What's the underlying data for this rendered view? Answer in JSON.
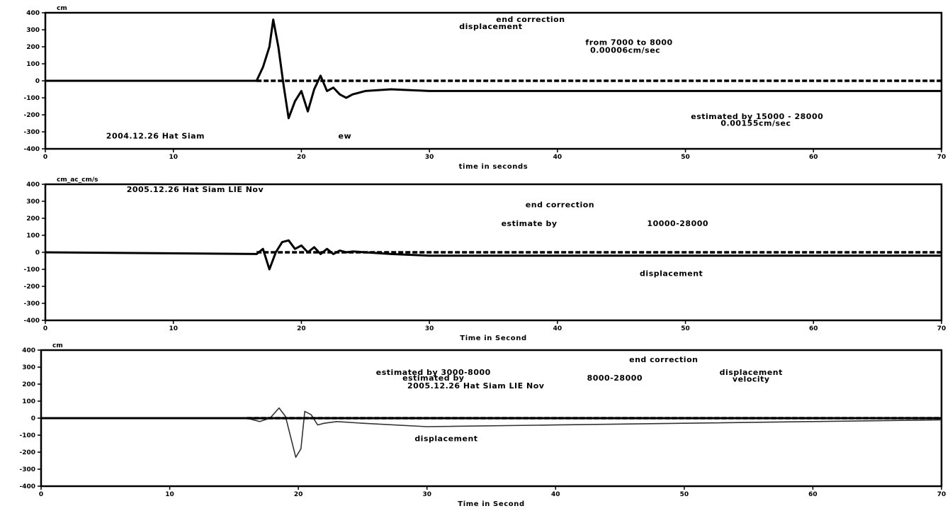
{
  "chart_data": [
    {
      "type": "line",
      "unit": "cm",
      "xlabel": "time in seconds",
      "xlim": [
        0,
        70
      ],
      "ylim": [
        -400,
        400
      ],
      "xticks": [
        0,
        10,
        20,
        30,
        40,
        50,
        60,
        70
      ],
      "yticks": [
        -400,
        -300,
        -200,
        -100,
        0,
        100,
        200,
        300,
        400
      ],
      "annotations": [
        {
          "text": "end correction",
          "x": 37.9,
          "y": 345
        },
        {
          "text": "displacement",
          "x": 34.8,
          "y": 305
        },
        {
          "text": "from 7000 to 8000",
          "x": 45.6,
          "y": 210
        },
        {
          "text": "0.00006cm/sec",
          "x": 45.3,
          "y": 165
        },
        {
          "text": "estimated by 15000 - 28000",
          "x": 55.6,
          "y": -225
        },
        {
          "text": "0.00155cm/sec",
          "x": 55.5,
          "y": -265
        },
        {
          "text": "2004.12.26 Hat Siam",
          "x": 8.6,
          "y": -340
        },
        {
          "text": "ew",
          "x": 23.4,
          "y": -340
        }
      ],
      "series": [
        {
          "style": "bold",
          "x": [
            0,
            16.5,
            17,
            17.5,
            17.8,
            18.2,
            18.6,
            19.0,
            19.5,
            20.0,
            20.5,
            21.0,
            21.5,
            22.0,
            22.5,
            23.0,
            23.5,
            24.0,
            24.5,
            25.0,
            27,
            30,
            35,
            70
          ],
          "y": [
            0,
            0,
            80,
            200,
            360,
            200,
            -20,
            -220,
            -120,
            -60,
            -180,
            -50,
            30,
            -60,
            -40,
            -80,
            -100,
            -80,
            -70,
            -60,
            -50,
            -60,
            -60,
            -60
          ]
        },
        {
          "style": "dotted",
          "x": [
            16.5,
            70
          ],
          "y": [
            0,
            0
          ]
        }
      ]
    },
    {
      "type": "line",
      "unit": "cm_ac_cm/s",
      "xlabel": "Time in Second",
      "xlim": [
        0,
        70
      ],
      "ylim": [
        -400,
        400
      ],
      "xticks": [
        0,
        10,
        20,
        30,
        40,
        50,
        60,
        70
      ],
      "yticks": [
        -400,
        -300,
        -200,
        -100,
        0,
        100,
        200,
        300,
        400
      ],
      "annotations": [
        {
          "text": "2005.12.26 Hat Siam LIE Nov",
          "x": 11.7,
          "y": 355
        },
        {
          "text": "end correction",
          "x": 40.2,
          "y": 265
        },
        {
          "text": "estimate by",
          "x": 37.8,
          "y": 155
        },
        {
          "text": "10000-28000",
          "x": 49.4,
          "y": 155
        },
        {
          "text": "displacement",
          "x": 48.9,
          "y": -140
        }
      ],
      "series": [
        {
          "style": "bold",
          "x": [
            0,
            16.5,
            17,
            17.5,
            18,
            18.5,
            19,
            19.5,
            20,
            20.5,
            21,
            21.5,
            22,
            22.5,
            23,
            23.5,
            24,
            25,
            27,
            30,
            35,
            50,
            60,
            70
          ],
          "y": [
            0,
            -10,
            20,
            -100,
            0,
            60,
            70,
            20,
            40,
            0,
            30,
            -10,
            20,
            -10,
            10,
            0,
            5,
            0,
            -10,
            -20,
            -20,
            -20,
            -20,
            -20
          ]
        },
        {
          "style": "dotted",
          "x": [
            16.5,
            70
          ],
          "y": [
            0,
            0
          ]
        }
      ]
    },
    {
      "type": "line",
      "unit": "cm",
      "xlabel": "Time in Second",
      "xlim": [
        0,
        70
      ],
      "ylim": [
        -400,
        400
      ],
      "xticks": [
        0,
        10,
        20,
        30,
        40,
        50,
        60,
        70
      ],
      "yticks": [
        -400,
        -300,
        -200,
        -100,
        0,
        100,
        200,
        300,
        400
      ],
      "annotations": [
        {
          "text": "end correction",
          "x": 48.4,
          "y": 330
        },
        {
          "text": "estimated by 3000-8000",
          "x": 30.5,
          "y": 255
        },
        {
          "text": "estimated by",
          "x": 30.5,
          "y": 220
        },
        {
          "text": "8000-28000",
          "x": 44.6,
          "y": 220
        },
        {
          "text": "2005.12.26 Hat Siam LIE Nov",
          "x": 33.8,
          "y": 175
        },
        {
          "text": "displacement",
          "x": 55.2,
          "y": 255
        },
        {
          "text": "velocity",
          "x": 55.2,
          "y": 215
        },
        {
          "text": "displacement",
          "x": 31.5,
          "y": -135
        }
      ],
      "series": [
        {
          "style": "bold",
          "x": [
            0,
            16,
            70
          ],
          "y": [
            0,
            0,
            0
          ]
        },
        {
          "style": "thin",
          "x": [
            16,
            17,
            17.8,
            18.5,
            19,
            19.8,
            20.2,
            20.5,
            21,
            21.5,
            22,
            23,
            25,
            30,
            40,
            50,
            60,
            70
          ],
          "y": [
            0,
            -20,
            0,
            60,
            10,
            -230,
            -180,
            40,
            20,
            -40,
            -30,
            -20,
            -30,
            -50,
            -40,
            -30,
            -20,
            -10
          ]
        },
        {
          "style": "dotted",
          "x": [
            16,
            70
          ],
          "y": [
            0,
            0
          ]
        }
      ]
    }
  ]
}
